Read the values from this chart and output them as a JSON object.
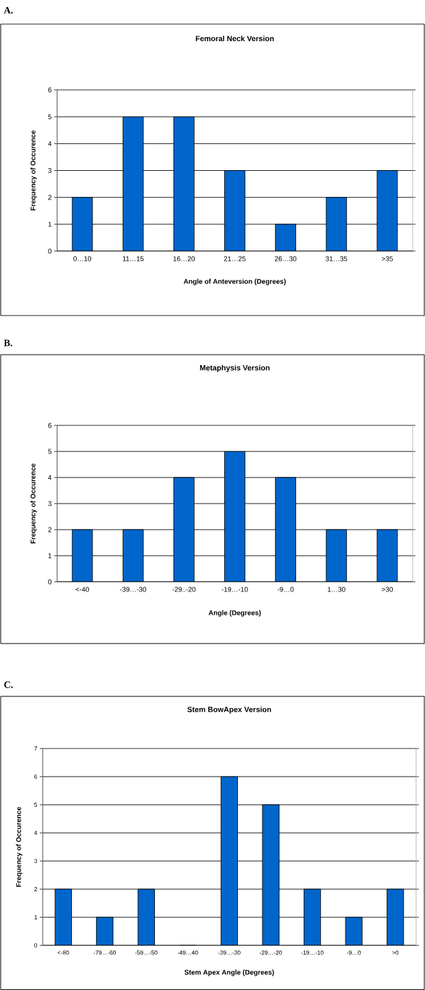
{
  "chart_data": [
    {
      "type": "bar",
      "title": "Femoral Neck Version",
      "xlabel": "Angle of Anteversion (Degrees)",
      "ylabel": "Frequency of Occurence",
      "annotations": [
        "A."
      ],
      "categories": [
        "0…10",
        "11…15",
        "16…20",
        "21…25",
        "26…30",
        "31…35",
        ">35"
      ],
      "values": [
        2,
        5,
        5,
        3,
        1,
        2,
        3
      ],
      "color": "#0066cc",
      "ylim": [
        0,
        6
      ],
      "yticks": [
        0,
        1,
        2,
        3,
        4,
        5,
        6
      ],
      "grid": "y"
    },
    {
      "type": "bar",
      "title": "Metaphysis Version",
      "xlabel": "Angle (Degrees)",
      "ylabel": "Frequency of Occurence",
      "annotations": [
        "B."
      ],
      "categories": [
        "<-40",
        "-39…-30",
        "-29..-20",
        "-19…-10",
        "-9…0",
        "1…30",
        ">30"
      ],
      "values": [
        2,
        2,
        4,
        5,
        4,
        2,
        2
      ],
      "color": "#0066cc",
      "ylim": [
        0,
        6
      ],
      "yticks": [
        0,
        1,
        2,
        3,
        4,
        5,
        6
      ],
      "grid": "y"
    },
    {
      "type": "bar",
      "title": "Stem BowApex Version",
      "xlabel": "Stem Apex Angle (Degrees)",
      "ylabel": "Frequency of Occurence",
      "annotations": [
        "C."
      ],
      "categories": [
        "<-80",
        "-79…-60",
        "-59…-50",
        "-49…40",
        "-39…-30",
        "-29…-20",
        "-19…-10",
        "-9…0",
        ">0"
      ],
      "values": [
        2,
        1,
        2,
        0,
        6,
        5,
        2,
        1,
        2
      ],
      "color": "#0066cc",
      "ylim": [
        0,
        7
      ],
      "yticks": [
        0,
        1,
        2,
        3,
        4,
        5,
        6,
        7
      ],
      "grid": "y"
    }
  ]
}
